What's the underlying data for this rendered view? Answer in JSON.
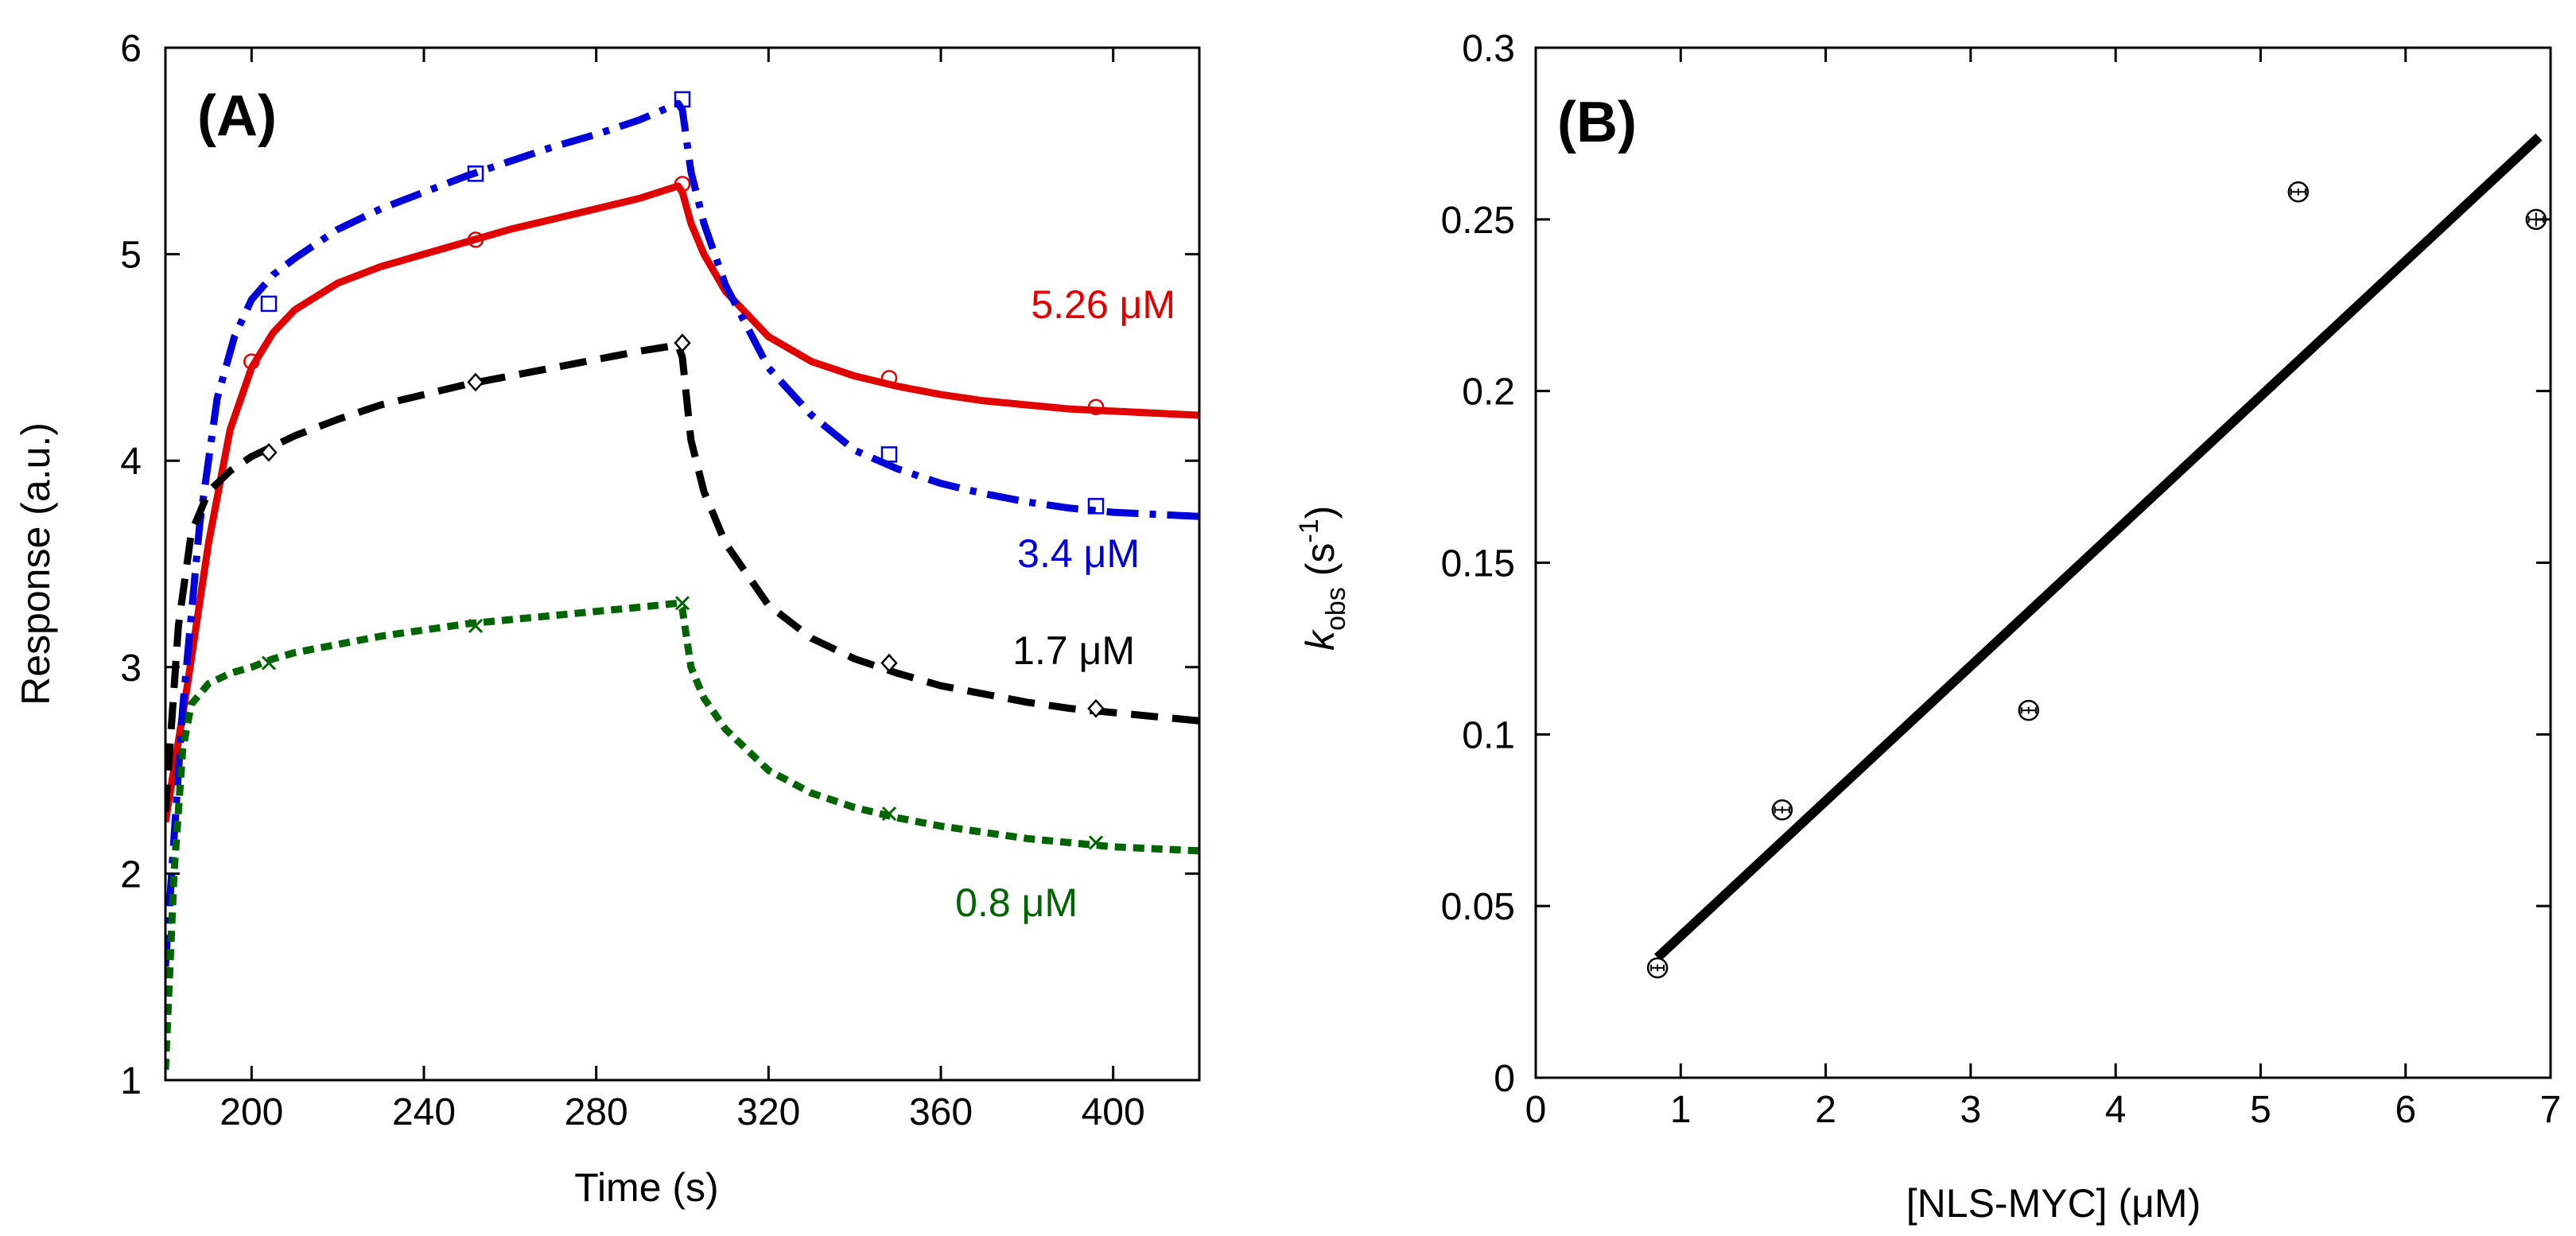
{
  "chart_data": [
    {
      "panel": "(A)",
      "type": "line",
      "title": "",
      "xlabel": "Time (s)",
      "ylabel": "Response (a.u.)",
      "xlim": [
        180,
        420
      ],
      "ylim": [
        1,
        6
      ],
      "xticks": [
        200,
        240,
        280,
        320,
        360,
        400
      ],
      "yticks": [
        1,
        2,
        3,
        4,
        5,
        6
      ],
      "grid": false,
      "series": [
        {
          "name": "5.26 µM",
          "label": "5.26 μM",
          "color": "#e00000",
          "dash": "solid",
          "marker": "circle",
          "x": [
            180,
            185,
            190,
            195,
            200,
            205,
            210,
            220,
            230,
            240,
            250,
            260,
            270,
            280,
            290,
            299,
            300,
            302,
            305,
            310,
            320,
            330,
            340,
            350,
            360,
            370,
            380,
            390,
            400,
            410,
            420
          ],
          "y": [
            2.25,
            2.9,
            3.6,
            4.15,
            4.45,
            4.62,
            4.73,
            4.86,
            4.94,
            5.0,
            5.06,
            5.12,
            5.17,
            5.22,
            5.27,
            5.33,
            5.3,
            5.15,
            5.0,
            4.82,
            4.6,
            4.48,
            4.41,
            4.36,
            4.32,
            4.29,
            4.27,
            4.25,
            4.24,
            4.23,
            4.22
          ],
          "marker_x": [
            200,
            252,
            300,
            348,
            396
          ],
          "marker_y": [
            4.48,
            5.07,
            5.34,
            4.4,
            4.26
          ]
        },
        {
          "name": "3.4 µM",
          "label": "3.4 μM",
          "color": "#0000d8",
          "dash": "dashdot",
          "marker": "square",
          "x": [
            180,
            184,
            188,
            192,
            196,
            200,
            205,
            210,
            220,
            230,
            240,
            250,
            260,
            270,
            280,
            290,
            299,
            300,
            302,
            305,
            310,
            320,
            330,
            340,
            350,
            360,
            370,
            380,
            390,
            400,
            410,
            420
          ],
          "y": [
            1.55,
            2.8,
            3.7,
            4.3,
            4.6,
            4.78,
            4.9,
            4.98,
            5.12,
            5.22,
            5.3,
            5.38,
            5.45,
            5.52,
            5.58,
            5.65,
            5.73,
            5.7,
            5.4,
            5.15,
            4.85,
            4.45,
            4.22,
            4.05,
            3.96,
            3.89,
            3.84,
            3.8,
            3.77,
            3.75,
            3.74,
            3.73
          ],
          "marker_x": [
            204,
            252,
            300,
            348,
            396
          ],
          "marker_y": [
            4.76,
            5.39,
            5.75,
            4.03,
            3.78
          ]
        },
        {
          "name": "1.7 µM",
          "label": "1.7 μM",
          "color": "#000000",
          "dash": "dashed",
          "marker": "diamond",
          "x": [
            180,
            183,
            186,
            190,
            195,
            200,
            205,
            210,
            220,
            230,
            240,
            250,
            260,
            270,
            280,
            290,
            299,
            300,
            302,
            305,
            310,
            320,
            330,
            340,
            350,
            360,
            370,
            380,
            390,
            400,
            410,
            420
          ],
          "y": [
            2.3,
            3.2,
            3.65,
            3.85,
            3.95,
            4.02,
            4.07,
            4.12,
            4.2,
            4.27,
            4.32,
            4.37,
            4.41,
            4.45,
            4.49,
            4.53,
            4.56,
            4.5,
            4.1,
            3.85,
            3.6,
            3.3,
            3.14,
            3.04,
            2.97,
            2.91,
            2.87,
            2.83,
            2.8,
            2.78,
            2.76,
            2.74
          ],
          "marker_x": [
            204,
            252,
            300,
            348,
            396
          ],
          "marker_y": [
            4.04,
            4.38,
            4.57,
            3.02,
            2.8
          ]
        },
        {
          "name": "0.8 µM",
          "label": "0.8 μM",
          "color": "#006400",
          "dash": "dotted",
          "marker": "x",
          "x": [
            180,
            182,
            184,
            186,
            190,
            195,
            200,
            205,
            210,
            220,
            230,
            240,
            250,
            260,
            270,
            280,
            290,
            299,
            300,
            302,
            305,
            310,
            320,
            330,
            340,
            350,
            360,
            370,
            380,
            390,
            400,
            410,
            420
          ],
          "y": [
            1.05,
            2.0,
            2.6,
            2.82,
            2.92,
            2.97,
            3.0,
            3.04,
            3.07,
            3.11,
            3.15,
            3.18,
            3.21,
            3.23,
            3.25,
            3.27,
            3.29,
            3.31,
            3.28,
            3.0,
            2.85,
            2.7,
            2.5,
            2.39,
            2.32,
            2.27,
            2.23,
            2.2,
            2.17,
            2.15,
            2.13,
            2.12,
            2.11
          ],
          "marker_x": [
            204,
            252,
            300,
            348,
            396
          ],
          "marker_y": [
            3.02,
            3.2,
            3.31,
            2.29,
            2.15
          ]
        }
      ]
    },
    {
      "panel": "(B)",
      "type": "scatter",
      "title": "",
      "xlabel": "[NLS-MYC] (μM)",
      "ylabel_main": "k",
      "ylabel_sub": "obs",
      "ylabel_open": " (s",
      "ylabel_sup": "-1",
      "ylabel_close": ")",
      "xlim": [
        0,
        7
      ],
      "ylim": [
        0,
        0.3
      ],
      "xticks": [
        0,
        1,
        2,
        3,
        4,
        5,
        6,
        7
      ],
      "yticks": [
        0,
        0.05,
        0.1,
        0.15,
        0.2,
        0.25,
        0.3
      ],
      "ytick_labels": [
        "0",
        "0.05",
        "0.1",
        "0.15",
        "0.2",
        "0.25",
        "0.3"
      ],
      "grid": false,
      "points": {
        "x": [
          0.84,
          1.7,
          3.4,
          5.26,
          6.9
        ],
        "y": [
          0.032,
          0.078,
          0.107,
          0.258,
          0.25
        ],
        "xerr": [
          0.04,
          0.05,
          0.05,
          0.05,
          0.05
        ],
        "yerr": [
          0.001,
          0.001,
          0.001,
          0.001,
          0.002
        ]
      },
      "fit": {
        "x": [
          0.84,
          6.92
        ],
        "y": [
          0.035,
          0.274
        ]
      }
    }
  ]
}
